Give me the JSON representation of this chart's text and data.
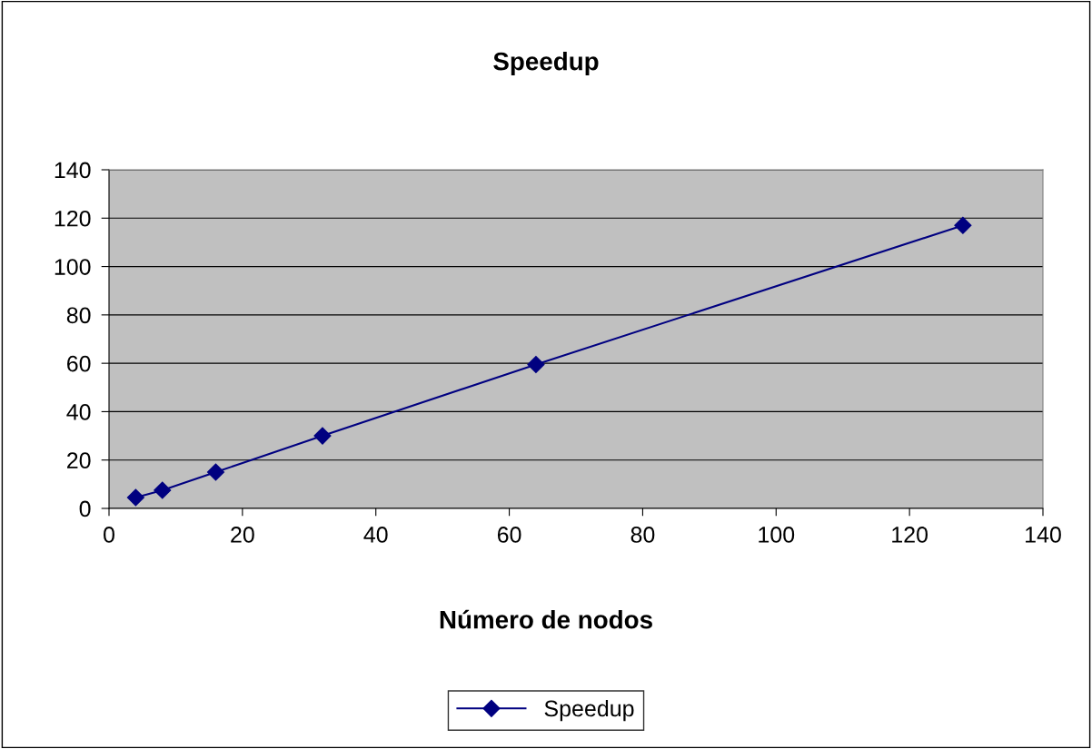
{
  "chart_data": {
    "type": "line",
    "title": "Speedup",
    "xlabel": "Número de nodos",
    "x": [
      4,
      8,
      16,
      32,
      64,
      128
    ],
    "series": [
      {
        "name": "Speedup",
        "color": "#000080",
        "values": [
          4.5,
          7.5,
          15,
          30,
          59.5,
          117
        ]
      }
    ],
    "xlim": [
      0,
      140
    ],
    "xticks": [
      0,
      20,
      40,
      60,
      80,
      100,
      120,
      140
    ],
    "ylim": [
      0,
      140
    ],
    "yticks": [
      0,
      20,
      40,
      60,
      80,
      100,
      120,
      140
    ],
    "grid": "y",
    "legend": "bottom",
    "marker": "diamond",
    "line_style": "solid"
  }
}
